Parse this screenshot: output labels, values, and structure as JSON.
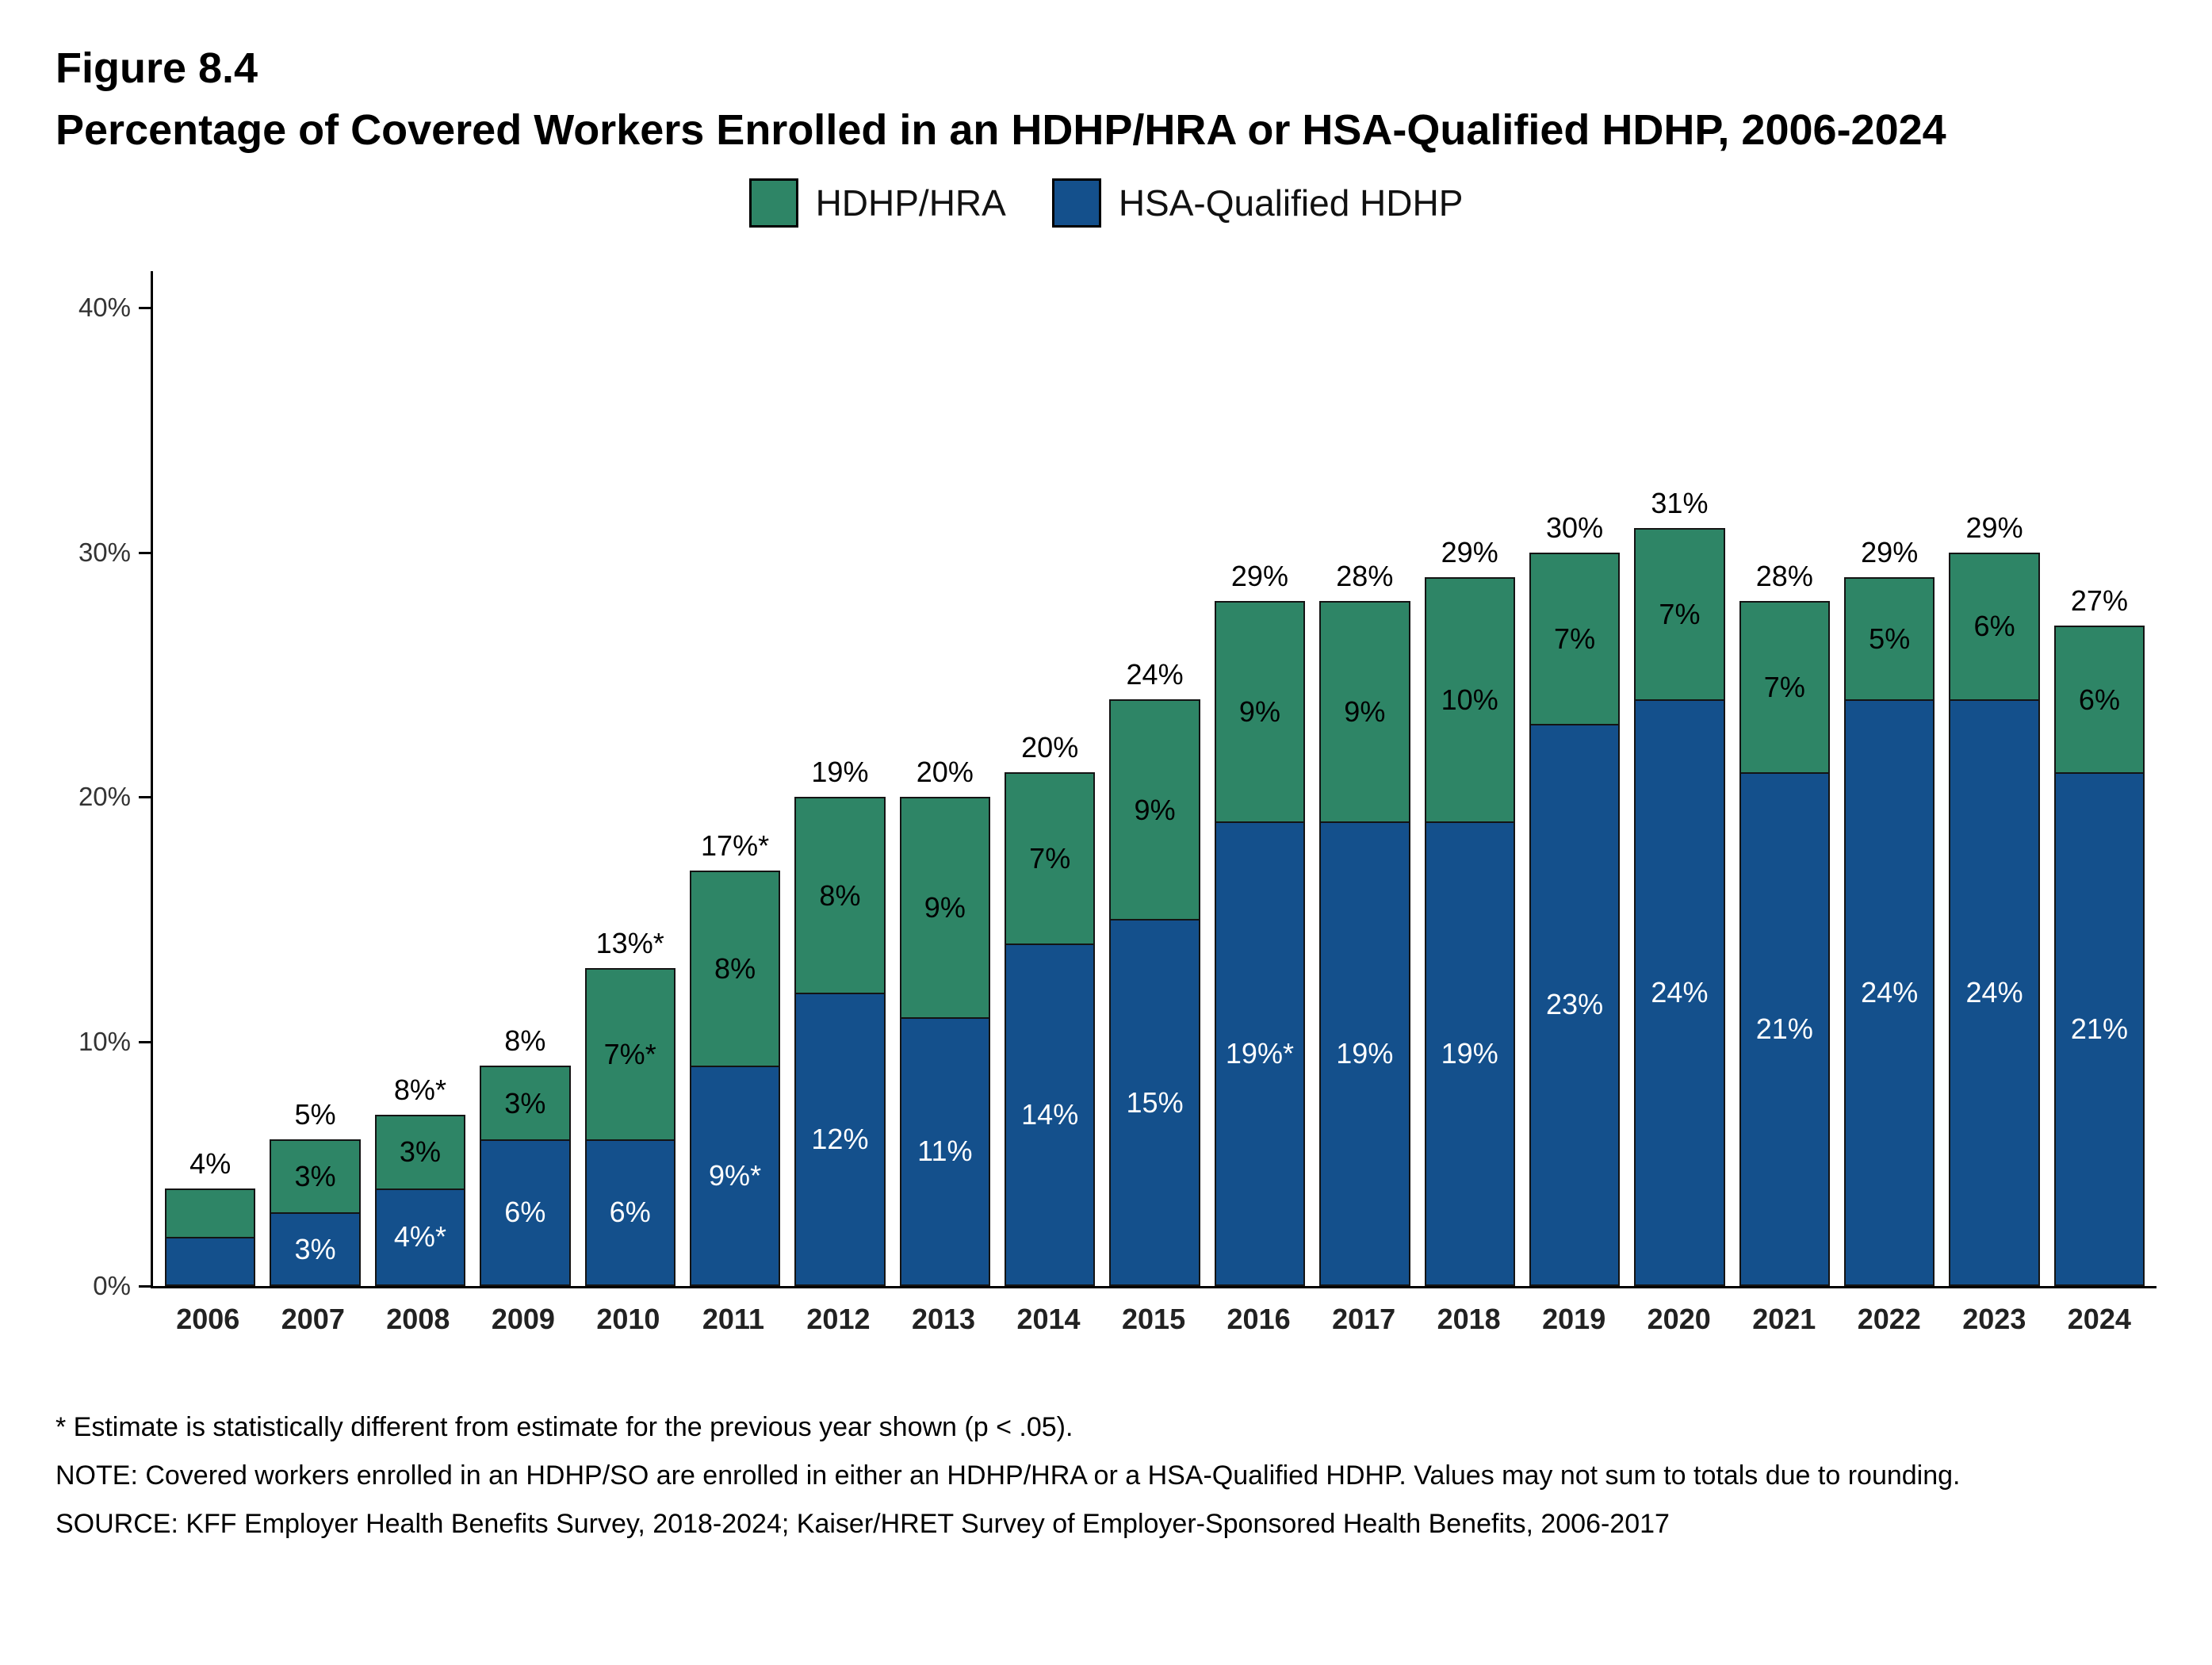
{
  "header": {
    "figure_label": "Figure 8.4",
    "title": "Percentage of Covered Workers Enrolled in an HDHP/HRA or HSA-Qualified HDHP, 2006-2024"
  },
  "legend": [
    {
      "label": "HDHP/HRA",
      "color": "#2E8566"
    },
    {
      "label": "HSA-Qualified HDHP",
      "color": "#14508C"
    }
  ],
  "chart_data": {
    "type": "bar",
    "stacked": true,
    "title": "Percentage of Covered Workers Enrolled in an HDHP/HRA or HSA-Qualified HDHP, 2006-2024",
    "xlabel": "",
    "ylabel": "",
    "grid": false,
    "legend_position": "top",
    "ylim": [
      0,
      40
    ],
    "y_headroom": 41.5,
    "yticks": [
      {
        "value": 0,
        "label": "0%"
      },
      {
        "value": 10,
        "label": "10%"
      },
      {
        "value": 20,
        "label": "20%"
      },
      {
        "value": 30,
        "label": "30%"
      },
      {
        "value": 40,
        "label": "40%"
      }
    ],
    "categories": [
      "2006",
      "2007",
      "2008",
      "2009",
      "2010",
      "2011",
      "2012",
      "2013",
      "2014",
      "2015",
      "2016",
      "2017",
      "2018",
      "2019",
      "2020",
      "2021",
      "2022",
      "2023",
      "2024"
    ],
    "series": [
      {
        "key": "hsa",
        "name": "HSA-Qualified HDHP",
        "color": "#14508C",
        "label_color": "#FFFFFF",
        "values": [
          2,
          3,
          4,
          6,
          6,
          9,
          12,
          11,
          14,
          15,
          19,
          19,
          19,
          23,
          24,
          21,
          24,
          24,
          21
        ],
        "labels": [
          "",
          "3%",
          "4%*",
          "6%",
          "6%",
          "9%*",
          "12%",
          "11%",
          "14%",
          "15%",
          "19%*",
          "19%",
          "19%",
          "23%",
          "24%",
          "21%",
          "24%",
          "24%",
          "21%"
        ]
      },
      {
        "key": "hra",
        "name": "HDHP/HRA",
        "color": "#2E8566",
        "label_color": "#000000",
        "values": [
          2,
          3,
          3,
          3,
          7,
          8,
          8,
          9,
          7,
          9,
          9,
          9,
          10,
          7,
          7,
          7,
          5,
          6,
          6
        ],
        "labels": [
          "",
          "3%",
          "3%",
          "3%",
          "7%*",
          "8%",
          "8%",
          "9%",
          "7%",
          "9%",
          "9%",
          "9%",
          "10%",
          "7%",
          "7%",
          "7%",
          "5%",
          "6%",
          "6%"
        ]
      }
    ],
    "total_labels": [
      "4%",
      "5%",
      "8%*",
      "8%",
      "13%*",
      "17%*",
      "19%",
      "20%",
      "20%",
      "24%",
      "29%",
      "28%",
      "29%",
      "30%",
      "31%",
      "28%",
      "29%",
      "29%",
      "27%"
    ]
  },
  "footnotes": {
    "asterisk": "* Estimate is statistically different from estimate for the previous year shown (p < .05).",
    "note": "NOTE: Covered workers enrolled in an HDHP/SO are enrolled in either an HDHP/HRA or a HSA-Qualified HDHP. Values may not sum to totals due to rounding.",
    "source": "SOURCE: KFF Employer Health Benefits Survey, 2018-2024; Kaiser/HRET Survey of Employer-Sponsored Health Benefits, 2006-2017"
  }
}
